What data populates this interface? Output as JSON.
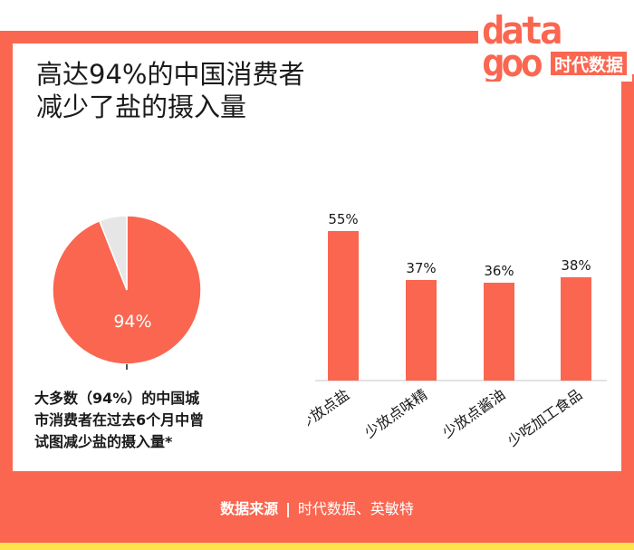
{
  "title": {
    "line1": "高达94%的中国消费者",
    "line2": "减少了盐的摄入量"
  },
  "logo": {
    "word_top": "data",
    "word_bottom": "goo",
    "cn_text": "时代数据"
  },
  "colors": {
    "accent": "#fa6650",
    "pie_rest": "#e6e6e6",
    "footer_stripe": "#ffe34d",
    "text": "#1a1a1a"
  },
  "pie_caption": {
    "line1": "大多数（94%）的中国城",
    "line2": "市消费者在过去6个月中曾",
    "line3": "试图减少盐的摄入量*"
  },
  "chart_data": [
    {
      "type": "pie",
      "values": [
        94,
        6
      ],
      "labels": [
        "94%",
        ""
      ]
    },
    {
      "type": "bar",
      "categories": [
        "少放点盐",
        "少放点味精",
        "少放点酱油",
        "少吃加工食品"
      ],
      "values": [
        55,
        37,
        36,
        38
      ],
      "data_labels": [
        "55%",
        "37%",
        "36%",
        "38%"
      ]
    }
  ],
  "footer": {
    "source_label": "数据来源",
    "separator": "|",
    "source_text": "时代数据、英敏特"
  }
}
